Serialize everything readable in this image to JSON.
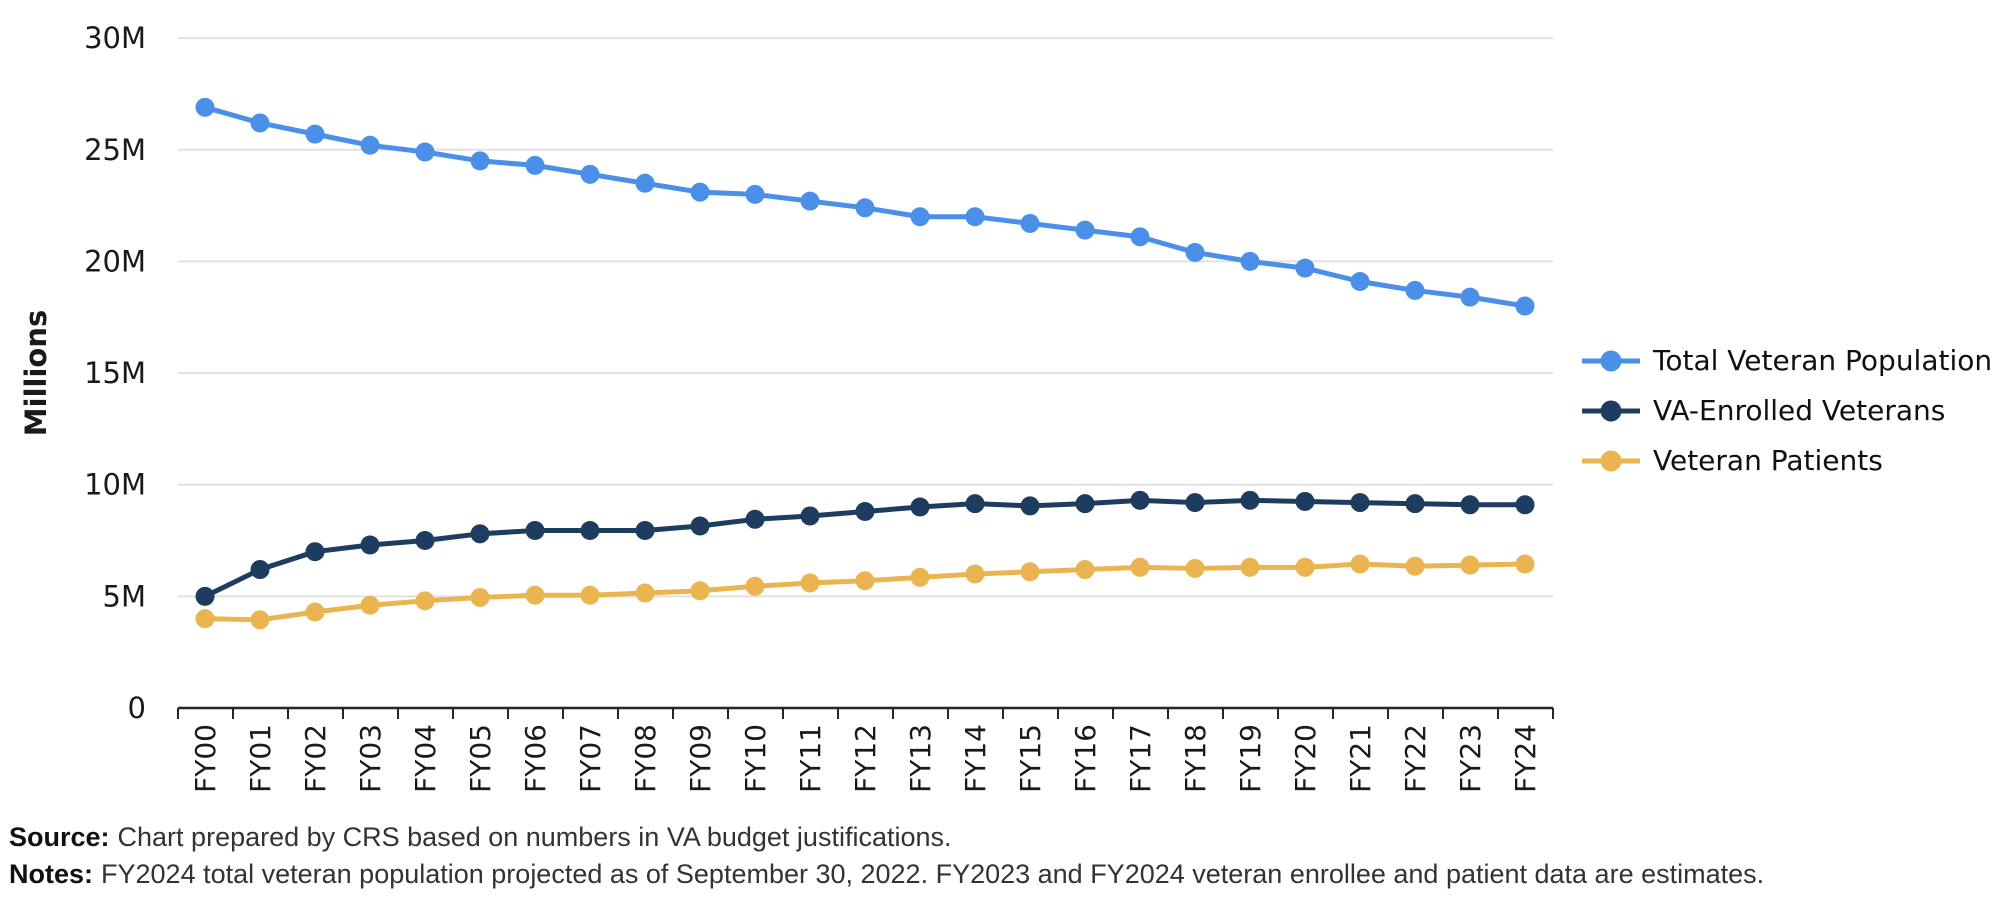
{
  "chart_data": {
    "type": "line",
    "title": "",
    "xlabel": "",
    "ylabel": "Millions",
    "unit": "millions of persons",
    "ylim": [
      0,
      30
    ],
    "grid": "horizontal",
    "legend_position": "right",
    "categories": [
      "FY00",
      "FY01",
      "FY02",
      "FY03",
      "FY04",
      "FY05",
      "FY06",
      "FY07",
      "FY08",
      "FY09",
      "FY10",
      "FY11",
      "FY12",
      "FY13",
      "FY14",
      "FY15",
      "FY16",
      "FY17",
      "FY18",
      "FY19",
      "FY20",
      "FY21",
      "FY22",
      "FY23",
      "FY24"
    ],
    "y_ticks": [
      {
        "value": 0,
        "label": "0"
      },
      {
        "value": 5,
        "label": "5M"
      },
      {
        "value": 10,
        "label": "10M"
      },
      {
        "value": 15,
        "label": "15M"
      },
      {
        "value": 20,
        "label": "20M"
      },
      {
        "value": 25,
        "label": "25M"
      },
      {
        "value": 30,
        "label": "30M"
      }
    ],
    "series": [
      {
        "name": "Total Veteran Population",
        "color": "#4A90E8",
        "values": [
          26.9,
          26.2,
          25.7,
          25.2,
          24.9,
          24.5,
          24.3,
          23.9,
          23.5,
          23.1,
          23.0,
          22.7,
          22.4,
          22.0,
          22.0,
          21.7,
          21.4,
          21.1,
          20.4,
          20.0,
          19.7,
          19.1,
          18.7,
          18.4,
          18.0
        ]
      },
      {
        "name": "VA-Enrolled Veterans",
        "color": "#1E3C5F",
        "values": [
          5.0,
          6.2,
          7.0,
          7.3,
          7.5,
          7.8,
          7.95,
          7.95,
          7.95,
          8.15,
          8.45,
          8.6,
          8.8,
          9.0,
          9.15,
          9.05,
          9.15,
          9.3,
          9.2,
          9.3,
          9.25,
          9.2,
          9.15,
          9.1,
          9.1
        ]
      },
      {
        "name": "Veteran Patients",
        "color": "#EAB551",
        "values": [
          4.0,
          3.95,
          4.3,
          4.6,
          4.8,
          4.95,
          5.05,
          5.05,
          5.15,
          5.25,
          5.45,
          5.6,
          5.7,
          5.85,
          6.0,
          6.1,
          6.2,
          6.3,
          6.25,
          6.3,
          6.3,
          6.45,
          6.35,
          6.4,
          6.45
        ]
      }
    ]
  },
  "footer": {
    "source_label": "Source:",
    "source_text": "Chart prepared by CRS based on numbers in VA budget justifications.",
    "notes_label": "Notes:",
    "notes_text": "FY2024 total veteran population projected as of September 30, 2022. FY2023 and FY2024 veteran enrollee and patient data are estimates."
  },
  "style_colors": {
    "gridline": "#E1E1E1",
    "axis": "#262626",
    "tick_text": "#1A1A1A"
  }
}
